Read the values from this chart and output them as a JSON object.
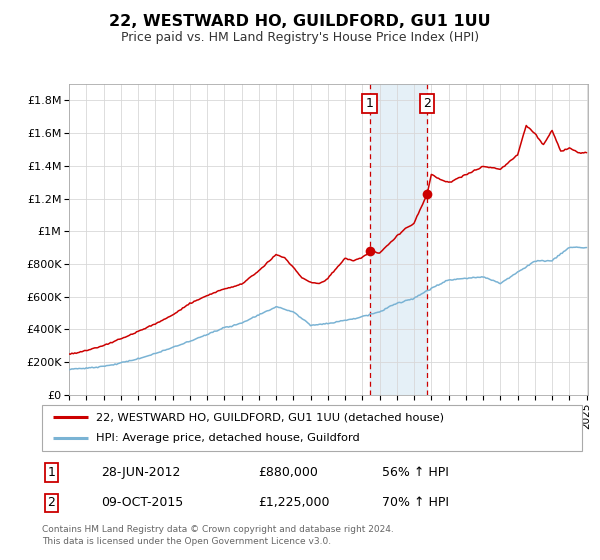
{
  "title": "22, WESTWARD HO, GUILDFORD, GU1 1UU",
  "subtitle": "Price paid vs. HM Land Registry's House Price Index (HPI)",
  "legend_line1": "22, WESTWARD HO, GUILDFORD, GU1 1UU (detached house)",
  "legend_line2": "HPI: Average price, detached house, Guildford",
  "transaction1_date": "28-JUN-2012",
  "transaction1_price": "£880,000",
  "transaction1_hpi": "56% ↑ HPI",
  "transaction1_label": "1",
  "transaction2_date": "09-OCT-2015",
  "transaction2_price": "£1,225,000",
  "transaction2_hpi": "70% ↑ HPI",
  "transaction2_label": "2",
  "footer": "Contains HM Land Registry data © Crown copyright and database right 2024.\nThis data is licensed under the Open Government Licence v3.0.",
  "hpi_color": "#7ab3d4",
  "price_color": "#cc0000",
  "marker_color": "#cc0000",
  "vline_color": "#cc0000",
  "shade_color": "#daeaf5",
  "ylim": [
    0,
    1900000
  ],
  "yticks": [
    0,
    200000,
    400000,
    600000,
    800000,
    1000000,
    1200000,
    1400000,
    1600000,
    1800000
  ],
  "ytick_labels": [
    "£0",
    "£200K",
    "£400K",
    "£600K",
    "£800K",
    "£1M",
    "£1.2M",
    "£1.4M",
    "£1.6M",
    "£1.8M"
  ],
  "x_start_year": 1995,
  "x_end_year": 2025,
  "t1_year": 2012,
  "t1_month": 6,
  "t1_price": 880000,
  "t2_year": 2015,
  "t2_month": 10,
  "t2_price": 1225000
}
